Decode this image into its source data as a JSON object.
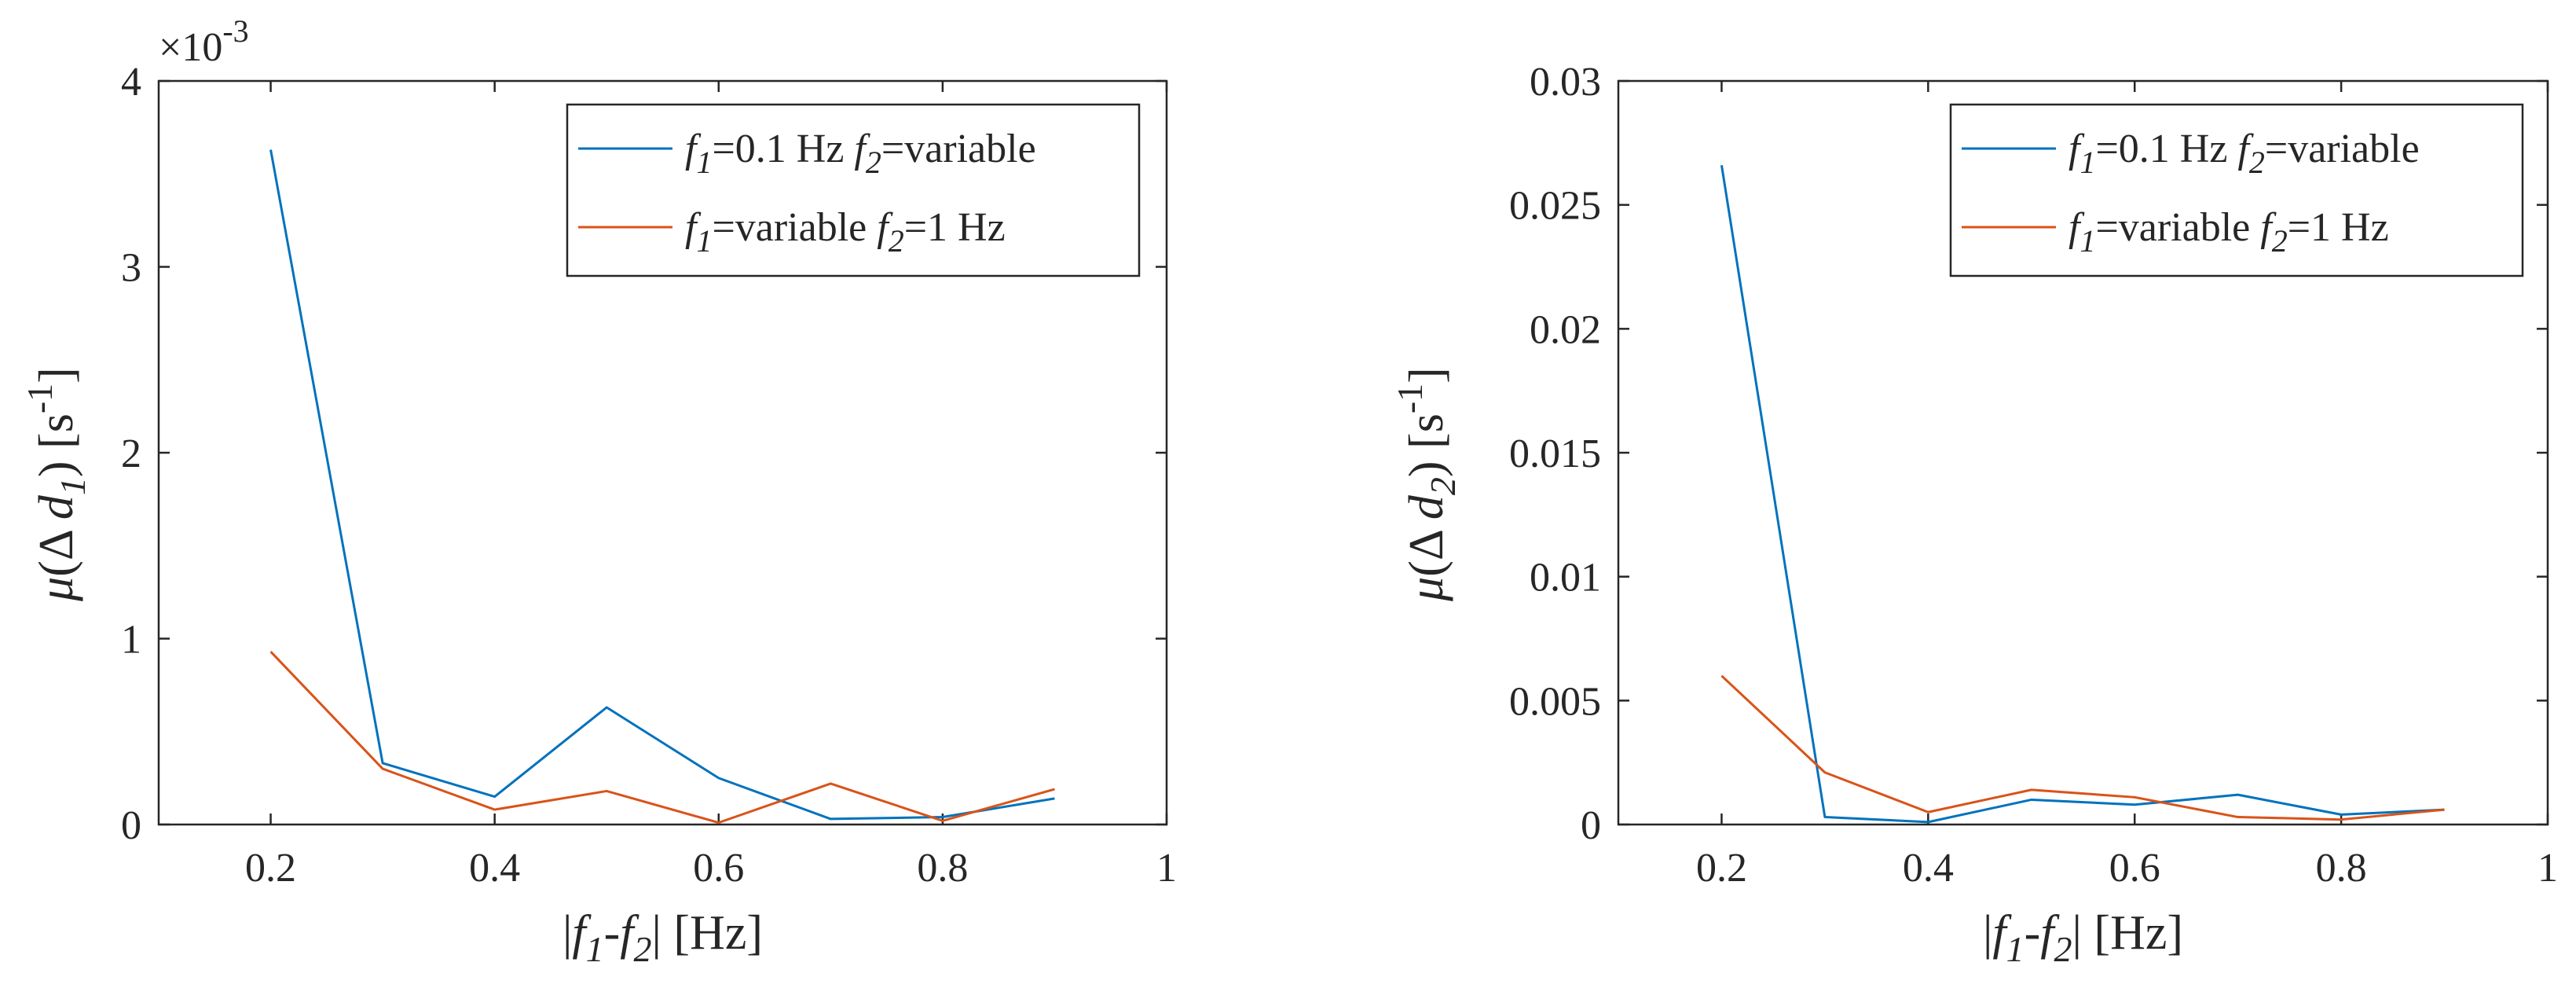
{
  "chart_data": [
    {
      "type": "line",
      "xlabel": "|f1-f2| [Hz]",
      "ylabel": "μ(Δ d1) [s-1]",
      "ylabel_parts": {
        "mu": "μ",
        "open": "(Δ ",
        "var": "d",
        "sub": "1",
        "close": ") [s",
        "sup": "-1",
        "end": "]"
      },
      "xlabel_parts": {
        "bar": "|",
        "f": "f",
        "sub1": "1",
        "dash": "-",
        "sub2": "2",
        "unit": "| [Hz]"
      },
      "exponent_label": {
        "times": "×10",
        "power": "-3"
      },
      "xlim": [
        0.1,
        1.0
      ],
      "ylim": [
        0,
        4
      ],
      "y_scale_factor": 0.001,
      "x_ticks": [
        0.2,
        0.4,
        0.6,
        0.8,
        1
      ],
      "x_tick_labels": [
        "0.2",
        "0.4",
        "0.6",
        "0.8",
        "1"
      ],
      "y_ticks": [
        0,
        1,
        2,
        3,
        4
      ],
      "y_tick_labels": [
        "0",
        "1",
        "2",
        "3",
        "4"
      ],
      "legend_position": "top-right",
      "x": [
        0.2,
        0.3,
        0.4,
        0.5,
        0.6,
        0.7,
        0.8,
        0.9
      ],
      "series": [
        {
          "name": "f1=0.1 Hz f2=variable",
          "label_parts": [
            "f",
            "1",
            "=0.1 Hz  ",
            "f",
            "2",
            "=variable"
          ],
          "color": "#0072BD",
          "values": [
            3.63,
            0.33,
            0.15,
            0.63,
            0.25,
            0.03,
            0.04,
            0.14
          ]
        },
        {
          "name": "f1=variable f2=1 Hz",
          "label_parts": [
            "f",
            "1",
            "=variable  ",
            "f",
            "2",
            "=1 Hz"
          ],
          "color": "#D95319",
          "values": [
            0.93,
            0.3,
            0.08,
            0.18,
            0.01,
            0.22,
            0.02,
            0.19
          ]
        }
      ]
    },
    {
      "type": "line",
      "xlabel": "|f1-f2| [Hz]",
      "ylabel": "μ(Δ d2) [s-1]",
      "ylabel_parts": {
        "mu": "μ",
        "open": "(Δ ",
        "var": "d",
        "sub": "2",
        "close": ") [s",
        "sup": "-1",
        "end": "]"
      },
      "xlabel_parts": {
        "bar": "|",
        "f": "f",
        "sub1": "1",
        "dash": "-",
        "sub2": "2",
        "unit": "| [Hz]"
      },
      "xlim": [
        0.1,
        1.0
      ],
      "ylim": [
        0,
        0.03
      ],
      "x_ticks": [
        0.2,
        0.4,
        0.6,
        0.8,
        1
      ],
      "x_tick_labels": [
        "0.2",
        "0.4",
        "0.6",
        "0.8",
        "1"
      ],
      "y_ticks": [
        0,
        0.005,
        0.01,
        0.015,
        0.02,
        0.025,
        0.03
      ],
      "y_tick_labels": [
        "0",
        "0.005",
        "0.01",
        "0.015",
        "0.02",
        "0.025",
        "0.03"
      ],
      "legend_position": "top-right",
      "x": [
        0.2,
        0.3,
        0.4,
        0.5,
        0.6,
        0.7,
        0.8,
        0.9
      ],
      "series": [
        {
          "name": "f1=0.1 Hz f2=variable",
          "label_parts": [
            "f",
            "1",
            "=0.1 Hz  ",
            "f",
            "2",
            "=variable"
          ],
          "color": "#0072BD",
          "values": [
            0.0266,
            0.0003,
            0.0001,
            0.001,
            0.0008,
            0.0012,
            0.0004,
            0.0006
          ]
        },
        {
          "name": "f1=variable f2=1 Hz",
          "label_parts": [
            "f",
            "1",
            "=variable  ",
            "f",
            "2",
            "=1 Hz"
          ],
          "color": "#D95319",
          "values": [
            0.006,
            0.0021,
            0.0005,
            0.0014,
            0.0011,
            0.0003,
            0.0002,
            0.0006
          ]
        }
      ]
    }
  ]
}
